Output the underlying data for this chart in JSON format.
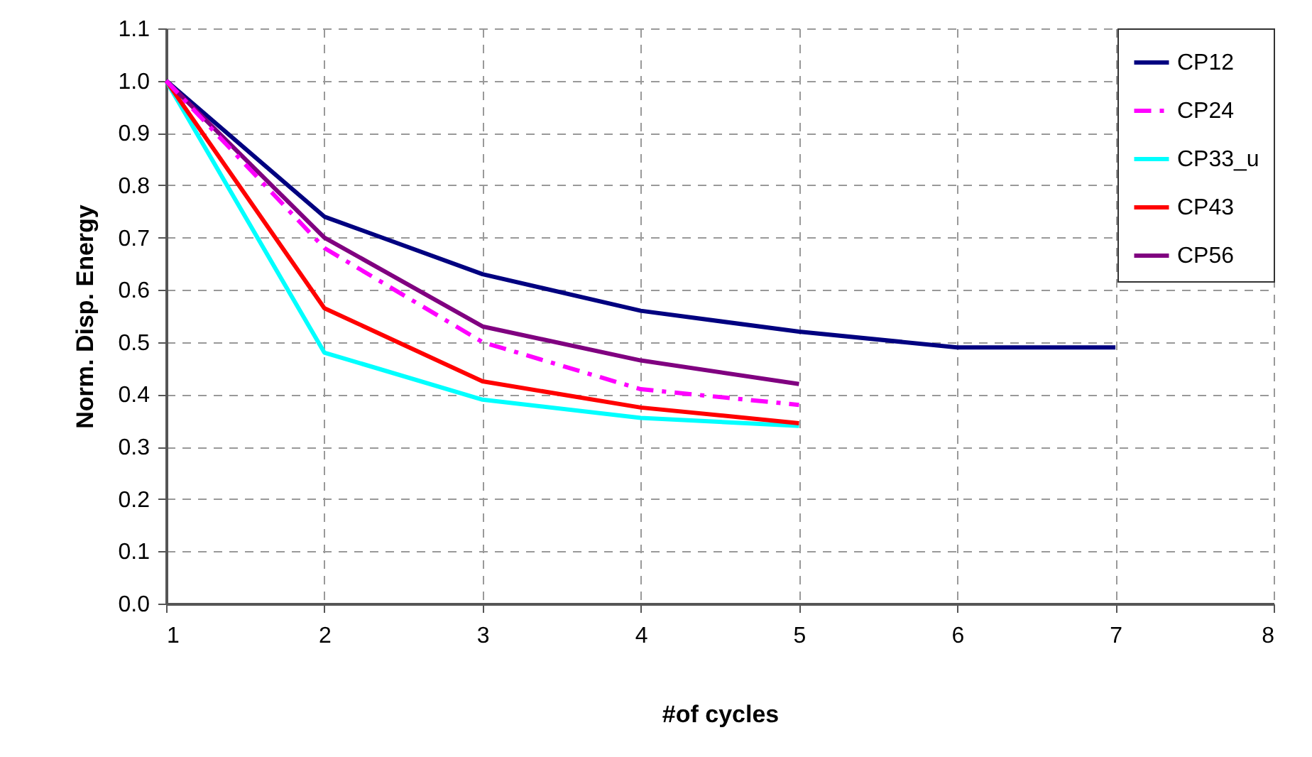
{
  "chart_data": {
    "type": "line",
    "xlabel": "#of cycles",
    "ylabel": "Norm. Disp. Energy",
    "xlim": [
      1,
      8
    ],
    "xticks": [
      1,
      2,
      3,
      4,
      5,
      6,
      7,
      8
    ],
    "ylim": [
      0,
      1.1
    ],
    "yticks": [
      {
        "value": 0,
        "label": "0.0"
      },
      {
        "value": 0.1,
        "label": "0.1"
      },
      {
        "value": 0.2,
        "label": "0.2"
      },
      {
        "value": 0.3,
        "label": "0.3"
      },
      {
        "value": 0.4,
        "label": "0.4"
      },
      {
        "value": 0.5,
        "label": "0.5"
      },
      {
        "value": 0.6,
        "label": "0.6"
      },
      {
        "value": 0.7,
        "label": "0.7"
      },
      {
        "value": 0.8,
        "label": "0.8"
      },
      {
        "value": 0.9,
        "label": "0.9"
      },
      {
        "value": 1,
        "label": "1.0"
      },
      {
        "value": 1.1,
        "label": "1.1"
      }
    ],
    "grid": true,
    "legend": "top right",
    "marker": "none",
    "series": [
      {
        "name": "CP12",
        "color": "#000080",
        "x": [
          1,
          2,
          3,
          4,
          5,
          6,
          7
        ],
        "values": [
          1.0,
          0.74,
          0.63,
          0.56,
          0.52,
          0.49,
          0.49
        ],
        "line_style": "solid"
      },
      {
        "name": "CP24",
        "color": "#ff00ff",
        "x": [
          1,
          2,
          3,
          4,
          5
        ],
        "values": [
          1.0,
          0.68,
          0.5,
          0.41,
          0.38
        ],
        "line_style": "dashed"
      },
      {
        "name": "CP33_u",
        "color": "#00ffff",
        "x": [
          1,
          2,
          3,
          4,
          5
        ],
        "values": [
          1.0,
          0.48,
          0.39,
          0.355,
          0.34
        ],
        "line_style": "solid"
      },
      {
        "name": "CP43",
        "color": "#ff0000",
        "x": [
          1,
          2,
          3,
          4,
          5
        ],
        "values": [
          1.0,
          0.565,
          0.425,
          0.375,
          0.345
        ],
        "line_style": "solid"
      },
      {
        "name": "CP56",
        "color": "#800080",
        "x": [
          1,
          2,
          3,
          4,
          5
        ],
        "values": [
          1.0,
          0.7,
          0.53,
          0.465,
          0.42
        ],
        "line_style": "solid"
      }
    ]
  }
}
